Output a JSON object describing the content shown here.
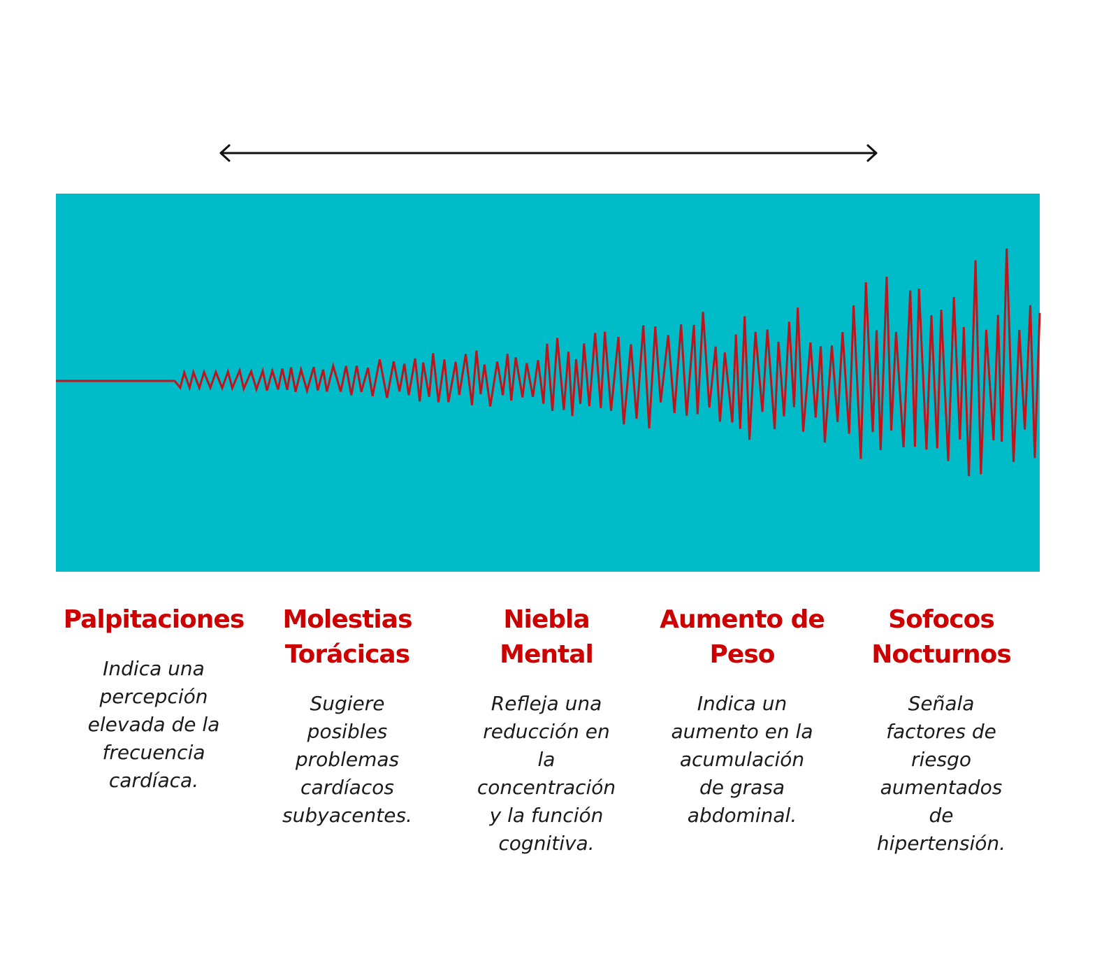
{
  "items": [
    {
      "title": [
        "Palpitaciones"
      ],
      "description": [
        "Indica una",
        "percepción",
        "elevada de la",
        "frecuencia",
        "cardíaca."
      ]
    },
    {
      "title": [
        "Molestias",
        "Torácicas"
      ],
      "description": [
        "Sugiere",
        "posibles",
        "problemas",
        "cardíacos",
        "subyacentes."
      ]
    },
    {
      "title": [
        "Niebla",
        "Mental"
      ],
      "description": [
        "Refleja una",
        "reducción en",
        "la",
        "concentración",
        "y la función",
        "cognitiva."
      ]
    },
    {
      "title": [
        "Aumento de",
        "Peso"
      ],
      "description": [
        "Indica un",
        "aumento en la",
        "acumulación",
        "de grasa",
        "abdominal."
      ]
    },
    {
      "title": [
        "Sofocos",
        "Nocturnos"
      ],
      "description": [
        "Señala",
        "factores de",
        "riesgo",
        "aumentados",
        "de",
        "hipertensión."
      ]
    }
  ]
}
